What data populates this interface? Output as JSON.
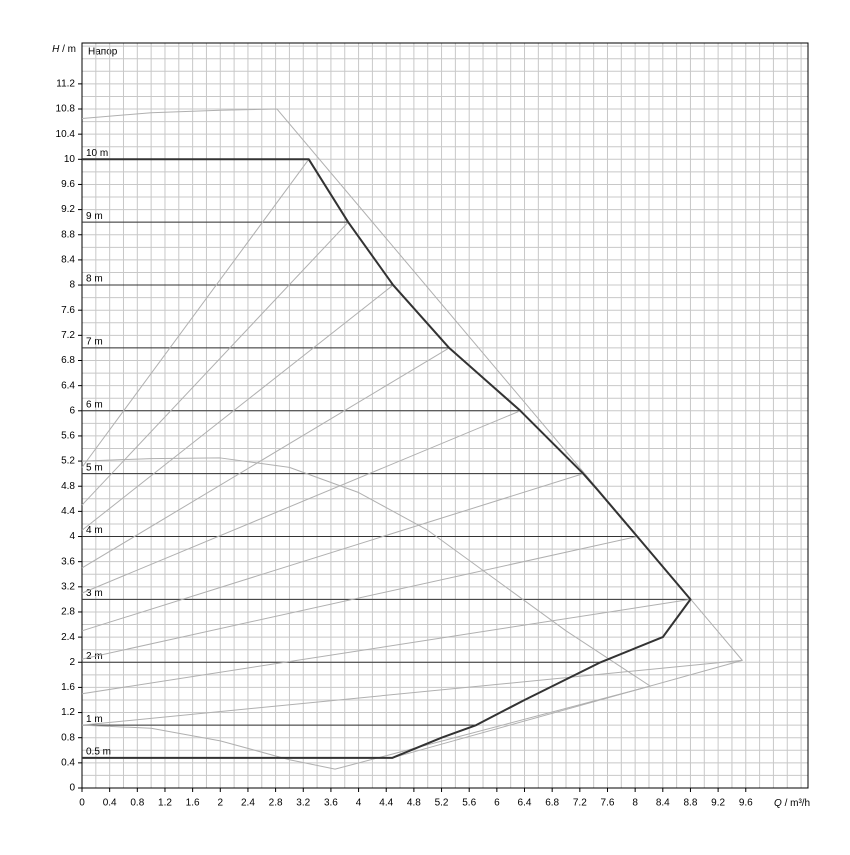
{
  "chart_data": {
    "type": "line",
    "title": "Напор",
    "y_axis_label": {
      "symbol": "H",
      "unit": "/ m"
    },
    "x_axis_label": {
      "symbol": "Q",
      "unit": "/ m³/h"
    },
    "xlim": [
      0,
      10.5
    ],
    "ylim": [
      0,
      11.85
    ],
    "xticks": [
      0,
      0.4,
      0.8,
      1.2,
      1.6,
      2,
      2.4,
      2.8,
      3.2,
      3.6,
      4,
      4.4,
      4.8,
      5.2,
      5.6,
      6,
      6.4,
      6.8,
      7.2,
      7.6,
      8,
      8.4,
      8.8,
      9.2,
      9.6
    ],
    "yticks": [
      0,
      0.4,
      0.8,
      1.2,
      1.6,
      2,
      2.4,
      2.8,
      3.2,
      3.6,
      4,
      4.4,
      4.8,
      5.2,
      5.6,
      6,
      6.4,
      6.8,
      7.2,
      7.6,
      8,
      8.4,
      8.8,
      9.2,
      9.6,
      10,
      10.4,
      10.8,
      11.2
    ],
    "grid": true,
    "minor_grid": true,
    "head_lines": [
      {
        "label": "10 m",
        "h": 10,
        "q_end": 3.28
      },
      {
        "label": "9 m",
        "h": 9,
        "q_end": 3.85
      },
      {
        "label": "8 m",
        "h": 8,
        "q_end": 4.5
      },
      {
        "label": "7 m",
        "h": 7,
        "q_end": 5.31
      },
      {
        "label": "6 m",
        "h": 6,
        "q_end": 6.34
      },
      {
        "label": "5 m",
        "h": 5,
        "q_end": 7.25
      },
      {
        "label": "4 m",
        "h": 4,
        "q_end": 8.03
      },
      {
        "label": "3 m",
        "h": 3,
        "q_end": 8.8
      },
      {
        "label": "2 m",
        "h": 2,
        "q_end": 7.5
      },
      {
        "label": "1 m",
        "h": 1,
        "q_end": 5.7
      },
      {
        "label": "0.5 m",
        "h": 0.48,
        "q_end": 4.49
      }
    ],
    "head_line_color": "#333333",
    "series": [
      {
        "color": "#b0b0b0",
        "width": 1,
        "x": [
          0,
          1,
          2,
          2.82,
          9.55,
          4.49
        ],
        "values": [
          10.65,
          10.74,
          10.78,
          10.8,
          2.03,
          0.48
        ]
      },
      {
        "color": "#b0b0b0",
        "width": 1,
        "x": [
          0,
          1,
          2,
          3,
          4,
          5,
          6,
          7,
          8.22
        ],
        "values": [
          5.2,
          5.24,
          5.25,
          5.1,
          4.7,
          4.1,
          3.3,
          2.5,
          1.62
        ]
      },
      {
        "color": "#b0b0b0",
        "width": 1,
        "x": [
          0,
          1,
          2,
          3,
          3.66,
          8.22
        ],
        "values": [
          1.0,
          0.95,
          0.75,
          0.45,
          0.3,
          1.62
        ]
      },
      {
        "color": "#b0b0b0",
        "width": 1,
        "x": [
          0,
          3.28
        ],
        "values": [
          5.1,
          10
        ]
      },
      {
        "color": "#b0b0b0",
        "width": 1,
        "x": [
          0,
          3.85
        ],
        "values": [
          4.5,
          9
        ]
      },
      {
        "color": "#b0b0b0",
        "width": 1,
        "x": [
          0,
          4.5
        ],
        "values": [
          4.1,
          8
        ]
      },
      {
        "color": "#b0b0b0",
        "width": 1,
        "x": [
          0,
          5.31
        ],
        "values": [
          3.5,
          7
        ]
      },
      {
        "color": "#b0b0b0",
        "width": 1,
        "x": [
          0,
          6.34
        ],
        "values": [
          3.1,
          6
        ]
      },
      {
        "color": "#b0b0b0",
        "width": 1,
        "x": [
          0,
          7.25
        ],
        "values": [
          2.5,
          5
        ]
      },
      {
        "color": "#b0b0b0",
        "width": 1,
        "x": [
          0,
          8.03
        ],
        "values": [
          2.05,
          4
        ]
      },
      {
        "color": "#b0b0b0",
        "width": 1,
        "x": [
          0,
          8.8
        ],
        "values": [
          1.5,
          3
        ]
      },
      {
        "color": "#b0b0b0",
        "width": 1,
        "x": [
          0,
          9.55
        ],
        "values": [
          1.0,
          2.03
        ]
      },
      {
        "color": "#333333",
        "width": 2,
        "x": [
          0,
          3.28,
          3.85,
          4.5,
          5.31,
          6.34,
          7.25,
          7.45,
          8.03,
          8.8,
          8.4,
          7.5,
          6.4,
          5.7,
          5.2,
          4.49,
          0
        ],
        "values": [
          10,
          10,
          9,
          8,
          7,
          6,
          5,
          4.75,
          4,
          3,
          2.4,
          2,
          1.4,
          1,
          0.8,
          0.48,
          0.48
        ]
      }
    ]
  }
}
